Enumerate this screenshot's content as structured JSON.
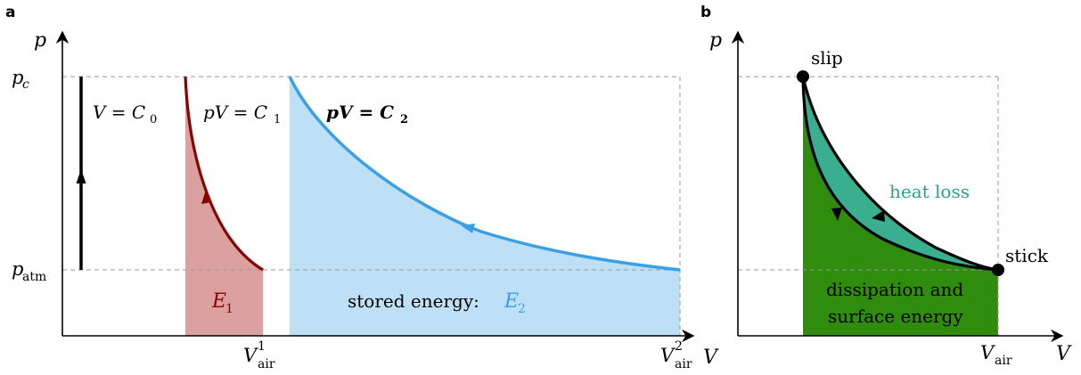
{
  "panel_a": {
    "letter": "a",
    "axis_y": "p",
    "axis_x": "V",
    "tick_pc_main": "p",
    "tick_pc_sub": "c",
    "tick_patm_main": "p",
    "tick_patm_sub": "atm",
    "tick_v1_main": "V",
    "tick_v1_sup": "1",
    "tick_v1_sub": "air",
    "tick_v2_main": "V",
    "tick_v2_sup": "2",
    "tick_v2_sub": "air",
    "label_c0_pre": "V = C",
    "label_c0_sub": "0",
    "label_c1_pre": "pV = C",
    "label_c1_sub": "1",
    "label_c2_pre": "pV = C",
    "label_c2_sub": "2",
    "e1_main": "E",
    "e1_sub": "1",
    "stored_text": "stored energy:",
    "e2_main": "E",
    "e2_sub": "2"
  },
  "panel_b": {
    "letter": "b",
    "axis_y": "p",
    "axis_x": "V",
    "slip_label": "slip",
    "stick_label": "stick",
    "heat_loss_label": "heat loss",
    "dissipation_line1": "dissipation and",
    "dissipation_line2": "surface energy",
    "tick_vair_main": "V",
    "tick_vair_sub": "air"
  },
  "colors": {
    "axis": "#000000",
    "dashed": "#999999",
    "red_curve": "#8b0000",
    "red_fill": "#dba0a0",
    "blue_curve": "#3aa0e6",
    "blue_fill": "#bde0f6",
    "blue_text": "#3aa0e6",
    "teal_fill": "#3aaf8f",
    "teal_text": "#2aa582",
    "green_fill": "#2f8c0c"
  }
}
